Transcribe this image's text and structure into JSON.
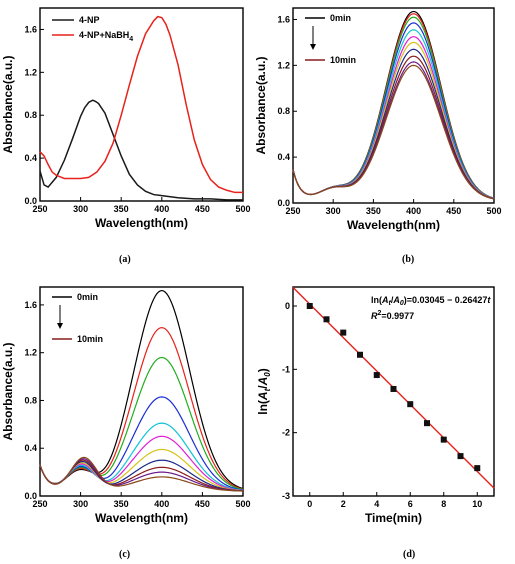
{
  "colors": {
    "black": "#1a1a1a",
    "red": "#e8211b",
    "fit_line": "#e8211b",
    "markers": "#111111"
  },
  "panels": {
    "a": {
      "label": "(a)"
    },
    "b": {
      "label": "(b)"
    },
    "c": {
      "label": "(c)"
    },
    "d": {
      "label": "(d)"
    }
  },
  "chart_data": [
    {
      "id": "a",
      "type": "line",
      "title": "",
      "xlabel": "Wavelength(nm)",
      "ylabel": "Absorbance(a.u.)",
      "xlim": [
        250,
        500
      ],
      "ylim": [
        0,
        1.8
      ],
      "x_ticks": [
        250,
        300,
        350,
        400,
        450,
        500
      ],
      "y_ticks": [
        0.0,
        0.4,
        0.8,
        1.2,
        1.6
      ],
      "y_tick_labels": [
        "0.0",
        "0.4",
        "0.8",
        "1.2",
        "1.6"
      ],
      "legend_position": "top-left",
      "series": [
        {
          "name": "4-NP",
          "color": "#1a1a1a",
          "x": [
            250,
            255,
            260,
            270,
            280,
            290,
            300,
            305,
            310,
            315,
            318,
            322,
            330,
            340,
            350,
            360,
            370,
            380,
            390,
            400,
            420,
            440,
            460,
            480,
            500
          ],
          "y": [
            0.28,
            0.15,
            0.13,
            0.22,
            0.38,
            0.58,
            0.79,
            0.87,
            0.92,
            0.94,
            0.93,
            0.91,
            0.82,
            0.62,
            0.42,
            0.25,
            0.15,
            0.09,
            0.06,
            0.05,
            0.03,
            0.02,
            0.02,
            0.01,
            0.01
          ]
        },
        {
          "name": "4-NP+NaBH4",
          "color": "#e8211b",
          "x": [
            250,
            255,
            260,
            265,
            270,
            280,
            290,
            300,
            310,
            320,
            330,
            340,
            350,
            360,
            370,
            380,
            390,
            395,
            400,
            405,
            410,
            420,
            430,
            440,
            450,
            460,
            470,
            480,
            490,
            500
          ],
          "y": [
            0.46,
            0.42,
            0.34,
            0.27,
            0.24,
            0.21,
            0.21,
            0.21,
            0.22,
            0.27,
            0.37,
            0.54,
            0.8,
            1.08,
            1.35,
            1.56,
            1.68,
            1.72,
            1.71,
            1.65,
            1.55,
            1.27,
            0.9,
            0.57,
            0.34,
            0.2,
            0.13,
            0.1,
            0.08,
            0.08
          ]
        }
      ]
    },
    {
      "id": "b",
      "type": "line",
      "title": "",
      "xlabel": "Wavelength(nm)",
      "ylabel": "Absorbance(a.u.)",
      "xlim": [
        250,
        500
      ],
      "ylim": [
        0,
        1.7
      ],
      "x_ticks": [
        250,
        300,
        350,
        400,
        450,
        500
      ],
      "y_ticks": [
        0.0,
        0.4,
        0.8,
        1.2,
        1.6
      ],
      "y_tick_labels": [
        "0.0",
        "0.4",
        "0.8",
        "1.2",
        "1.6"
      ],
      "legend_position": "top-left",
      "annotations": {
        "start": "0min",
        "end": "10min"
      },
      "peak_nm": 400,
      "peak_values": [
        1.65,
        1.63,
        1.6,
        1.55,
        1.49,
        1.43,
        1.38,
        1.32,
        1.26,
        1.21,
        1.18
      ],
      "series_colors": [
        "#000000",
        "#e8211b",
        "#1fae1f",
        "#1b2fd6",
        "#11c4d6",
        "#e020d6",
        "#d6c21b",
        "#1b2a8a",
        "#8a1b1b",
        "#6a1b8a",
        "#8a4a1b"
      ]
    },
    {
      "id": "c",
      "type": "line",
      "title": "",
      "xlabel": "Wavelength(nm)",
      "ylabel": "Absorbance(a.u.)",
      "xlim": [
        250,
        500
      ],
      "ylim": [
        0,
        1.75
      ],
      "x_ticks": [
        250,
        300,
        350,
        400,
        450,
        500
      ],
      "y_ticks": [
        0.0,
        0.4,
        0.8,
        1.2,
        1.6
      ],
      "y_tick_labels": [
        "0.0",
        "0.4",
        "0.8",
        "1.2",
        "1.6"
      ],
      "legend_position": "top-left",
      "annotations": {
        "start": "0min",
        "end": "10min"
      },
      "peak_nm": 400,
      "peak_values": [
        1.68,
        1.37,
        1.12,
        0.79,
        0.57,
        0.46,
        0.35,
        0.26,
        0.2,
        0.16,
        0.12
      ],
      "series_colors": [
        "#000000",
        "#e8211b",
        "#1fae1f",
        "#1b2fd6",
        "#11c4d6",
        "#e020d6",
        "#d6c21b",
        "#1b2a8a",
        "#8a1b1b",
        "#6a1b8a",
        "#8a4a1b"
      ]
    },
    {
      "id": "d",
      "type": "scatter",
      "title": "",
      "xlabel": "Time(min)",
      "ylabel": "ln(At/A0)",
      "xlim": [
        -1,
        11
      ],
      "ylim": [
        -3,
        0.3
      ],
      "x_ticks": [
        0,
        2,
        4,
        6,
        8,
        10
      ],
      "y_ticks": [
        0,
        -1,
        -2,
        -3
      ],
      "equation": "ln(At/A0)=0.03045 − 0.26427t",
      "r_squared": "R2=0.9977",
      "points": {
        "x": [
          0,
          1,
          2,
          3,
          4,
          5,
          6,
          7,
          8,
          9,
          10
        ],
        "y": [
          0.0,
          -0.21,
          -0.42,
          -0.77,
          -1.09,
          -1.31,
          -1.55,
          -1.85,
          -2.11,
          -2.37,
          -2.56
        ]
      },
      "fit": {
        "intercept": 0.03045,
        "slope": -0.26427
      }
    }
  ]
}
